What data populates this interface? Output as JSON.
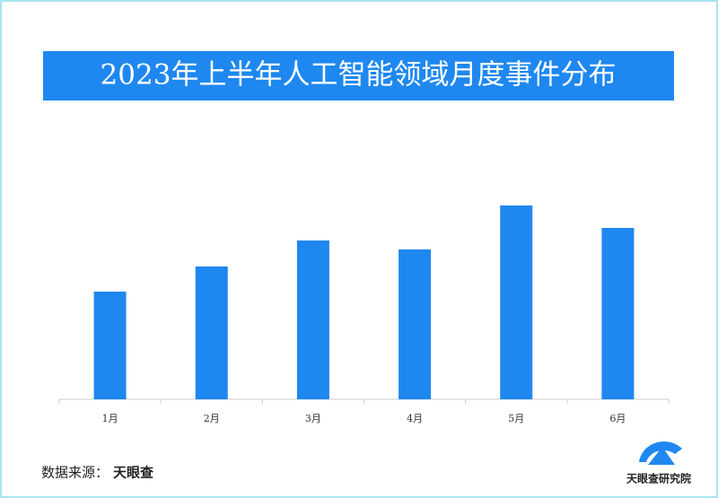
{
  "chart_data": {
    "type": "bar",
    "title": "2023年上半年人工智能领域月度事件分布",
    "categories": [
      "1月",
      "2月",
      "3月",
      "4月",
      "5月",
      "6月"
    ],
    "values": [
      120,
      148,
      177,
      167,
      216,
      191
    ],
    "color": "#1e88f0",
    "ylim": [
      0,
      240
    ]
  },
  "footer": {
    "source_label": "数据来源：",
    "source_value": "天眼查",
    "logo_text": "天眼查研究院"
  }
}
